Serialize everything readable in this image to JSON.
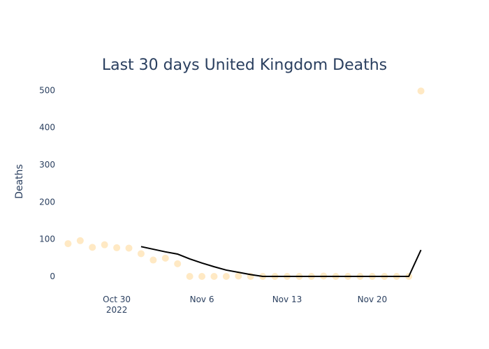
{
  "chart_data": {
    "type": "scatter",
    "title": "Last 30 days United Kingdom Deaths",
    "xlabel": "",
    "ylabel": "Deaths",
    "x_tick_labels": [
      {
        "date": "2022-10-30",
        "label": "Oct 30",
        "sublabel": "2022"
      },
      {
        "date": "2022-11-06",
        "label": "Nov 6",
        "sublabel": ""
      },
      {
        "date": "2022-11-13",
        "label": "Nov 13",
        "sublabel": ""
      },
      {
        "date": "2022-11-20",
        "label": "Nov 20",
        "sublabel": ""
      }
    ],
    "y_ticks": [
      0,
      100,
      200,
      300,
      400,
      500
    ],
    "ylim": [
      -45,
      555
    ],
    "xlim": [
      "2022-10-25",
      "2022-11-25"
    ],
    "grid": false,
    "legend": "none",
    "series": [
      {
        "mode": "markers",
        "color": "#ffe9c4",
        "points": [
          {
            "x": "2022-10-26",
            "y": 88
          },
          {
            "x": "2022-10-27",
            "y": 96
          },
          {
            "x": "2022-10-28",
            "y": 78
          },
          {
            "x": "2022-10-29",
            "y": 85
          },
          {
            "x": "2022-10-30",
            "y": 77
          },
          {
            "x": "2022-10-31",
            "y": 76
          },
          {
            "x": "2022-11-01",
            "y": 61
          },
          {
            "x": "2022-11-02",
            "y": 44
          },
          {
            "x": "2022-11-03",
            "y": 49
          },
          {
            "x": "2022-11-04",
            "y": 34
          },
          {
            "x": "2022-11-05",
            "y": 0
          },
          {
            "x": "2022-11-06",
            "y": 0
          },
          {
            "x": "2022-11-07",
            "y": 0
          },
          {
            "x": "2022-11-08",
            "y": 0
          },
          {
            "x": "2022-11-09",
            "y": 1
          },
          {
            "x": "2022-11-10",
            "y": 0
          },
          {
            "x": "2022-11-11",
            "y": 0
          },
          {
            "x": "2022-11-12",
            "y": 0
          },
          {
            "x": "2022-11-13",
            "y": 0
          },
          {
            "x": "2022-11-14",
            "y": 0
          },
          {
            "x": "2022-11-15",
            "y": 0
          },
          {
            "x": "2022-11-16",
            "y": 1
          },
          {
            "x": "2022-11-17",
            "y": 0
          },
          {
            "x": "2022-11-18",
            "y": 0
          },
          {
            "x": "2022-11-19",
            "y": 0
          },
          {
            "x": "2022-11-20",
            "y": 0
          },
          {
            "x": "2022-11-21",
            "y": 0
          },
          {
            "x": "2022-11-22",
            "y": 0
          },
          {
            "x": "2022-11-23",
            "y": 0
          },
          {
            "x": "2022-11-24",
            "y": 498
          }
        ]
      },
      {
        "mode": "lines",
        "color": "#000000",
        "points": [
          {
            "x": "2022-11-01",
            "y": 80
          },
          {
            "x": "2022-11-02",
            "y": 73
          },
          {
            "x": "2022-11-03",
            "y": 66
          },
          {
            "x": "2022-11-04",
            "y": 60
          },
          {
            "x": "2022-11-05",
            "y": 47
          },
          {
            "x": "2022-11-06",
            "y": 36
          },
          {
            "x": "2022-11-07",
            "y": 26
          },
          {
            "x": "2022-11-08",
            "y": 17
          },
          {
            "x": "2022-11-09",
            "y": 11
          },
          {
            "x": "2022-11-10",
            "y": 5
          },
          {
            "x": "2022-11-11",
            "y": 0
          },
          {
            "x": "2022-11-12",
            "y": 0
          },
          {
            "x": "2022-11-13",
            "y": 0
          },
          {
            "x": "2022-11-14",
            "y": 0
          },
          {
            "x": "2022-11-15",
            "y": 0
          },
          {
            "x": "2022-11-16",
            "y": 0
          },
          {
            "x": "2022-11-17",
            "y": 0
          },
          {
            "x": "2022-11-18",
            "y": 0
          },
          {
            "x": "2022-11-19",
            "y": 0
          },
          {
            "x": "2022-11-20",
            "y": 0
          },
          {
            "x": "2022-11-21",
            "y": 0
          },
          {
            "x": "2022-11-22",
            "y": 0
          },
          {
            "x": "2022-11-23",
            "y": 0
          },
          {
            "x": "2022-11-24",
            "y": 71
          }
        ]
      }
    ]
  }
}
